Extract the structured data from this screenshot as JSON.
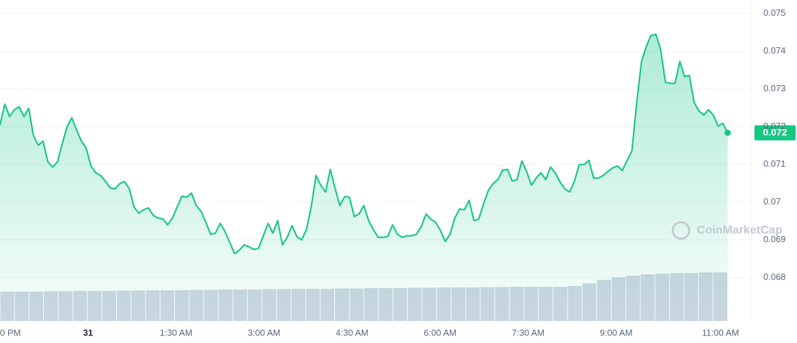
{
  "chart_data": {
    "type": "line",
    "watermark": "CoinMarketCap",
    "current_price_label": "0.072",
    "ylim": [
      0.06685,
      0.07536
    ],
    "yticks": [
      0.068,
      0.069,
      0.07,
      0.071,
      0.072,
      0.073,
      0.074,
      0.075
    ],
    "xlim": [
      -1.5,
      10.9
    ],
    "xticks": [
      {
        "value": -1.5,
        "label": "0 PM"
      },
      {
        "value": 0,
        "label": "31"
      },
      {
        "value": 1.5,
        "label": "1:30 AM"
      },
      {
        "value": 3,
        "label": "3:00 AM"
      },
      {
        "value": 4.5,
        "label": "4:30 AM"
      },
      {
        "value": 6,
        "label": "6:00 AM"
      },
      {
        "value": 7.5,
        "label": "7:30 AM"
      },
      {
        "value": 9,
        "label": "9:00 AM"
      },
      {
        "value": 11,
        "label": "11:00 AM"
      }
    ],
    "grid": true,
    "series": [
      {
        "color": "#16c784",
        "values": [
          0.07205,
          0.0726,
          0.07227,
          0.07245,
          0.07253,
          0.07227,
          0.07249,
          0.07176,
          0.07151,
          0.07162,
          0.07107,
          0.07093,
          0.07107,
          0.07155,
          0.072,
          0.07224,
          0.07191,
          0.07162,
          0.07144,
          0.07096,
          0.07078,
          0.07071,
          0.07056,
          0.07038,
          0.07035,
          0.07049,
          0.07055,
          0.07036,
          0.06987,
          0.06971,
          0.0698,
          0.06985,
          0.06965,
          0.06958,
          0.06956,
          0.0694,
          0.06958,
          0.06987,
          0.07016,
          0.07013,
          0.07024,
          0.06991,
          0.06976,
          0.06947,
          0.06915,
          0.06918,
          0.06944,
          0.06922,
          0.06893,
          0.06864,
          0.06873,
          0.06887,
          0.06882,
          0.06875,
          0.06878,
          0.06911,
          0.06944,
          0.06918,
          0.06951,
          0.06887,
          0.06907,
          0.06938,
          0.06909,
          0.069,
          0.06927,
          0.06987,
          0.07071,
          0.07045,
          0.07027,
          0.07087,
          0.07036,
          0.06991,
          0.07015,
          0.07013,
          0.06962,
          0.06969,
          0.06991,
          0.06951,
          0.06927,
          0.06907,
          0.06907,
          0.06909,
          0.0694,
          0.06915,
          0.06907,
          0.06911,
          0.06911,
          0.06915,
          0.06936,
          0.06969,
          0.06955,
          0.06947,
          0.06925,
          0.06896,
          0.06915,
          0.06958,
          0.06982,
          0.0698,
          0.07005,
          0.06951,
          0.06955,
          0.06995,
          0.07031,
          0.07049,
          0.0706,
          0.07085,
          0.07087,
          0.07056,
          0.0706,
          0.07109,
          0.07082,
          0.07045,
          0.07064,
          0.07078,
          0.0706,
          0.07093,
          0.07078,
          0.07053,
          0.07035,
          0.07027,
          0.07056,
          0.071,
          0.071,
          0.07111,
          0.07064,
          0.07064,
          0.07071,
          0.07082,
          0.07091,
          0.07096,
          0.07084,
          0.07111,
          0.07136,
          0.07264,
          0.07373,
          0.07413,
          0.07442,
          0.07445,
          0.07405,
          0.07318,
          0.07315,
          0.07315,
          0.07373,
          0.07333,
          0.07336,
          0.07264,
          0.07242,
          0.07231,
          0.07245,
          0.07231,
          0.07202,
          0.07209,
          0.07184
        ]
      }
    ],
    "volume": {
      "color": "#cfd6e4",
      "values": [
        43,
        43,
        43,
        43.5,
        43.5,
        44,
        44,
        44,
        44.5,
        44.5,
        45,
        45,
        45,
        45.5,
        45.5,
        46,
        46,
        46,
        46.5,
        46.5,
        47,
        47,
        47,
        47.5,
        47.5,
        48,
        48,
        48,
        48.5,
        48.5,
        49,
        49,
        49,
        49.5,
        49.5,
        50,
        50,
        50,
        50,
        51,
        55,
        60,
        64,
        66,
        68,
        69,
        70,
        70,
        71,
        71
      ]
    }
  }
}
